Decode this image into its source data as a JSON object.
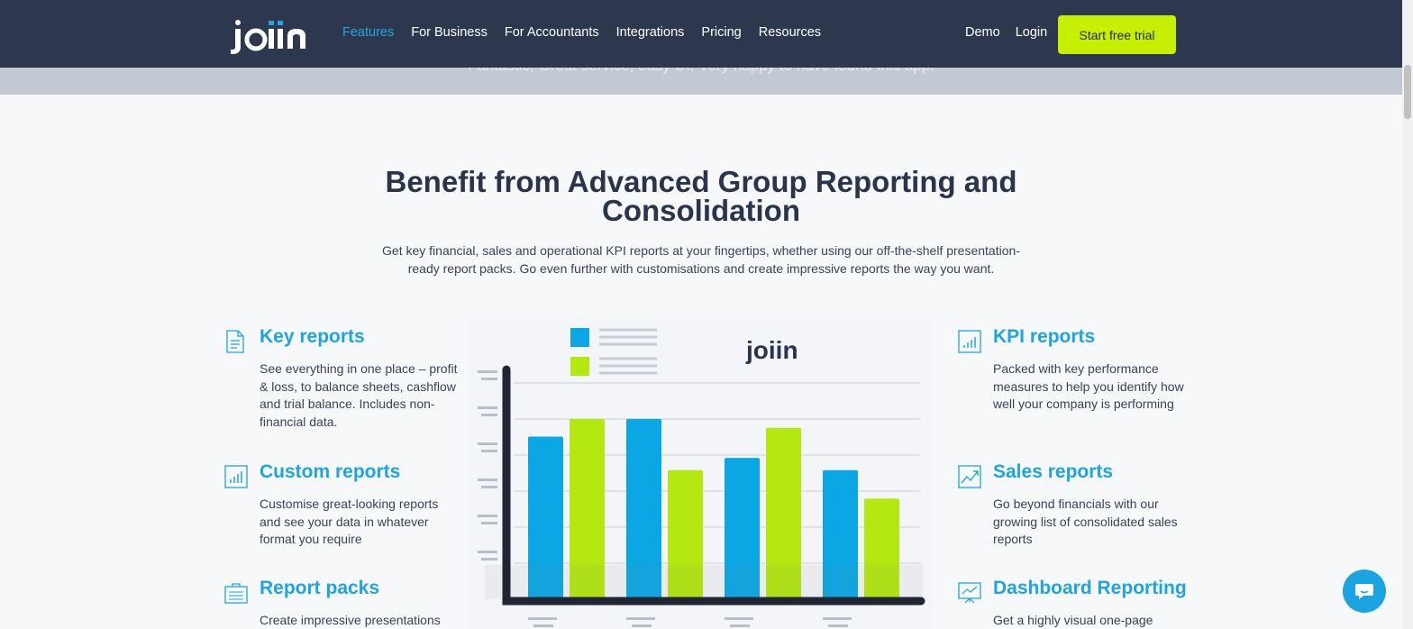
{
  "header": {
    "logo_text": "joiin",
    "nav": [
      {
        "label": "Features",
        "active": true
      },
      {
        "label": "For Business"
      },
      {
        "label": "For Accountants"
      },
      {
        "label": "Integrations"
      },
      {
        "label": "Pricing"
      },
      {
        "label": "Resources"
      }
    ],
    "demo_label": "Demo",
    "login_label": "Login",
    "cta_label": "Start free trial"
  },
  "testimonial_strip": {
    "text": "Fantastic, Great service, easy UI. Very happy to have found this app."
  },
  "section": {
    "title_line1": "Benefit from Advanced Group Reporting and",
    "title_line2": "Consolidation",
    "subtitle_line1": "Get key financial, sales and operational KPI reports at your fingertips, whether using our off-the-shelf presentation-",
    "subtitle_line2": "ready report packs. Go even further with customisations and create impressive reports the way you want."
  },
  "features_left": [
    {
      "icon": "document-icon",
      "title": "Key reports",
      "desc": "See everything in one place – profit & loss, to balance sheets, cashflow and trial balance. Includes non-financial data."
    },
    {
      "icon": "bar-chart-icon",
      "title": "Custom reports",
      "desc": "Customise great-looking reports and see your data in whatever format you require"
    },
    {
      "icon": "report-pack-icon",
      "title": "Report packs",
      "desc": "Create impressive presentations"
    }
  ],
  "features_right": [
    {
      "icon": "kpi-chart-icon",
      "title": "KPI reports",
      "desc": "Packed with key performance measures to help you identify how well your company is performing"
    },
    {
      "icon": "trend-line-icon",
      "title": "Sales reports",
      "desc": "Go beyond financials with our growing list of consolidated sales reports"
    },
    {
      "icon": "dashboard-icon",
      "title": "Dashboard Reporting",
      "desc": "Get a highly visual one-page"
    }
  ],
  "chart_data": {
    "type": "bar",
    "title": "",
    "logo_text": "joiin",
    "categories": [
      "",
      "",
      "",
      ""
    ],
    "series": [
      {
        "values": [
          92,
          102,
          80,
          73
        ],
        "color": "#0ba7e4"
      },
      {
        "values": [
          102,
          73,
          97,
          57
        ],
        "color": "#b4e810"
      }
    ],
    "ylim": [
      0,
      130
    ],
    "grid": true
  },
  "colors": {
    "header_bg": "#2d374e",
    "accent_blue": "#1ea4df",
    "cta_green": "#c6f000"
  },
  "chat_icon": "chat-bubble-icon"
}
